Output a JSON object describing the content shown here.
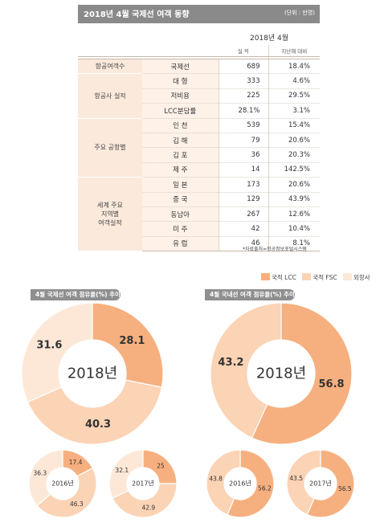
{
  "header": {
    "title": "2018년 4월 국제선 여객 동향",
    "unit": "(단위 : 만명)"
  },
  "table": {
    "period": "2018년 4월",
    "col_value": "실 적",
    "col_change": "지난해 대비",
    "groups": [
      {
        "label": "항공여객수",
        "rows": [
          {
            "name": "국제선",
            "value": "689",
            "change": "18.4%"
          }
        ]
      },
      {
        "label": "항공사 실적",
        "rows": [
          {
            "name": "대 형",
            "value": "333",
            "change": "4.6%"
          },
          {
            "name": "저비용",
            "value": "225",
            "change": "29.5%"
          },
          {
            "name": "LCC분담률",
            "value": "28.1%",
            "change": "3.1%"
          }
        ]
      },
      {
        "label": "주요 공항별",
        "rows": [
          {
            "name": "인 천",
            "value": "539",
            "change": "15.4%"
          },
          {
            "name": "김 해",
            "value": "79",
            "change": "20.6%"
          },
          {
            "name": "김 포",
            "value": "36",
            "change": "20.3%"
          },
          {
            "name": "제 주",
            "value": "14",
            "change": "142.5%"
          }
        ]
      },
      {
        "label": "세계 주요\n지역별\n여객실적",
        "rows": [
          {
            "name": "일 본",
            "value": "173",
            "change": "20.6%"
          },
          {
            "name": "중 국",
            "value": "129",
            "change": "43.9%"
          },
          {
            "name": "동남아",
            "value": "267",
            "change": "12.6%"
          },
          {
            "name": "미 주",
            "value": "42",
            "change": "10.4%"
          },
          {
            "name": "유 럽",
            "value": "46",
            "change": "8.1%"
          }
        ]
      }
    ]
  },
  "source_note": "*자료출처=항공정보포털시스템",
  "legend": [
    "국적 LCC",
    "국적 FSC",
    "외항사"
  ],
  "colors": {
    "lcc": "#f6b07f",
    "fsc": "#fbd3b5",
    "foreign": "#fde8d8",
    "header": "#8a8a8a"
  },
  "chart_data": [
    {
      "type": "pie",
      "title": "4월 국제선 여객 점유율(%) 추이",
      "center_label": "2018년",
      "categories": [
        "국적 LCC",
        "국적 FSC",
        "외항사"
      ],
      "values": [
        28.1,
        40.3,
        31.6
      ]
    },
    {
      "type": "pie",
      "title": "4월 국제선 여객 점유율(%) 추이",
      "center_label": "2016년",
      "categories": [
        "국적 LCC",
        "국적 FSC",
        "외항사"
      ],
      "values": [
        17.4,
        46.3,
        36.3
      ]
    },
    {
      "type": "pie",
      "title": "4월 국제선 여객 점유율(%) 추이",
      "center_label": "2017년",
      "categories": [
        "국적 LCC",
        "국적 FSC",
        "외항사"
      ],
      "values": [
        25,
        42.9,
        32.1
      ]
    },
    {
      "type": "pie",
      "title": "4월 국내선 여객 점유율(%) 추이",
      "center_label": "2018년",
      "categories": [
        "국적 LCC",
        "국적 FSC"
      ],
      "values": [
        56.8,
        43.2
      ]
    },
    {
      "type": "pie",
      "title": "4월 국내선 여객 점유율(%) 추이",
      "center_label": "2016년",
      "categories": [
        "국적 LCC",
        "국적 FSC"
      ],
      "values": [
        56.2,
        43.8
      ]
    },
    {
      "type": "pie",
      "title": "4월 국내선 여객 점유율(%) 추이",
      "center_label": "2017년",
      "categories": [
        "국적 LCC",
        "국적 FSC"
      ],
      "values": [
        56.5,
        43.5
      ]
    }
  ]
}
